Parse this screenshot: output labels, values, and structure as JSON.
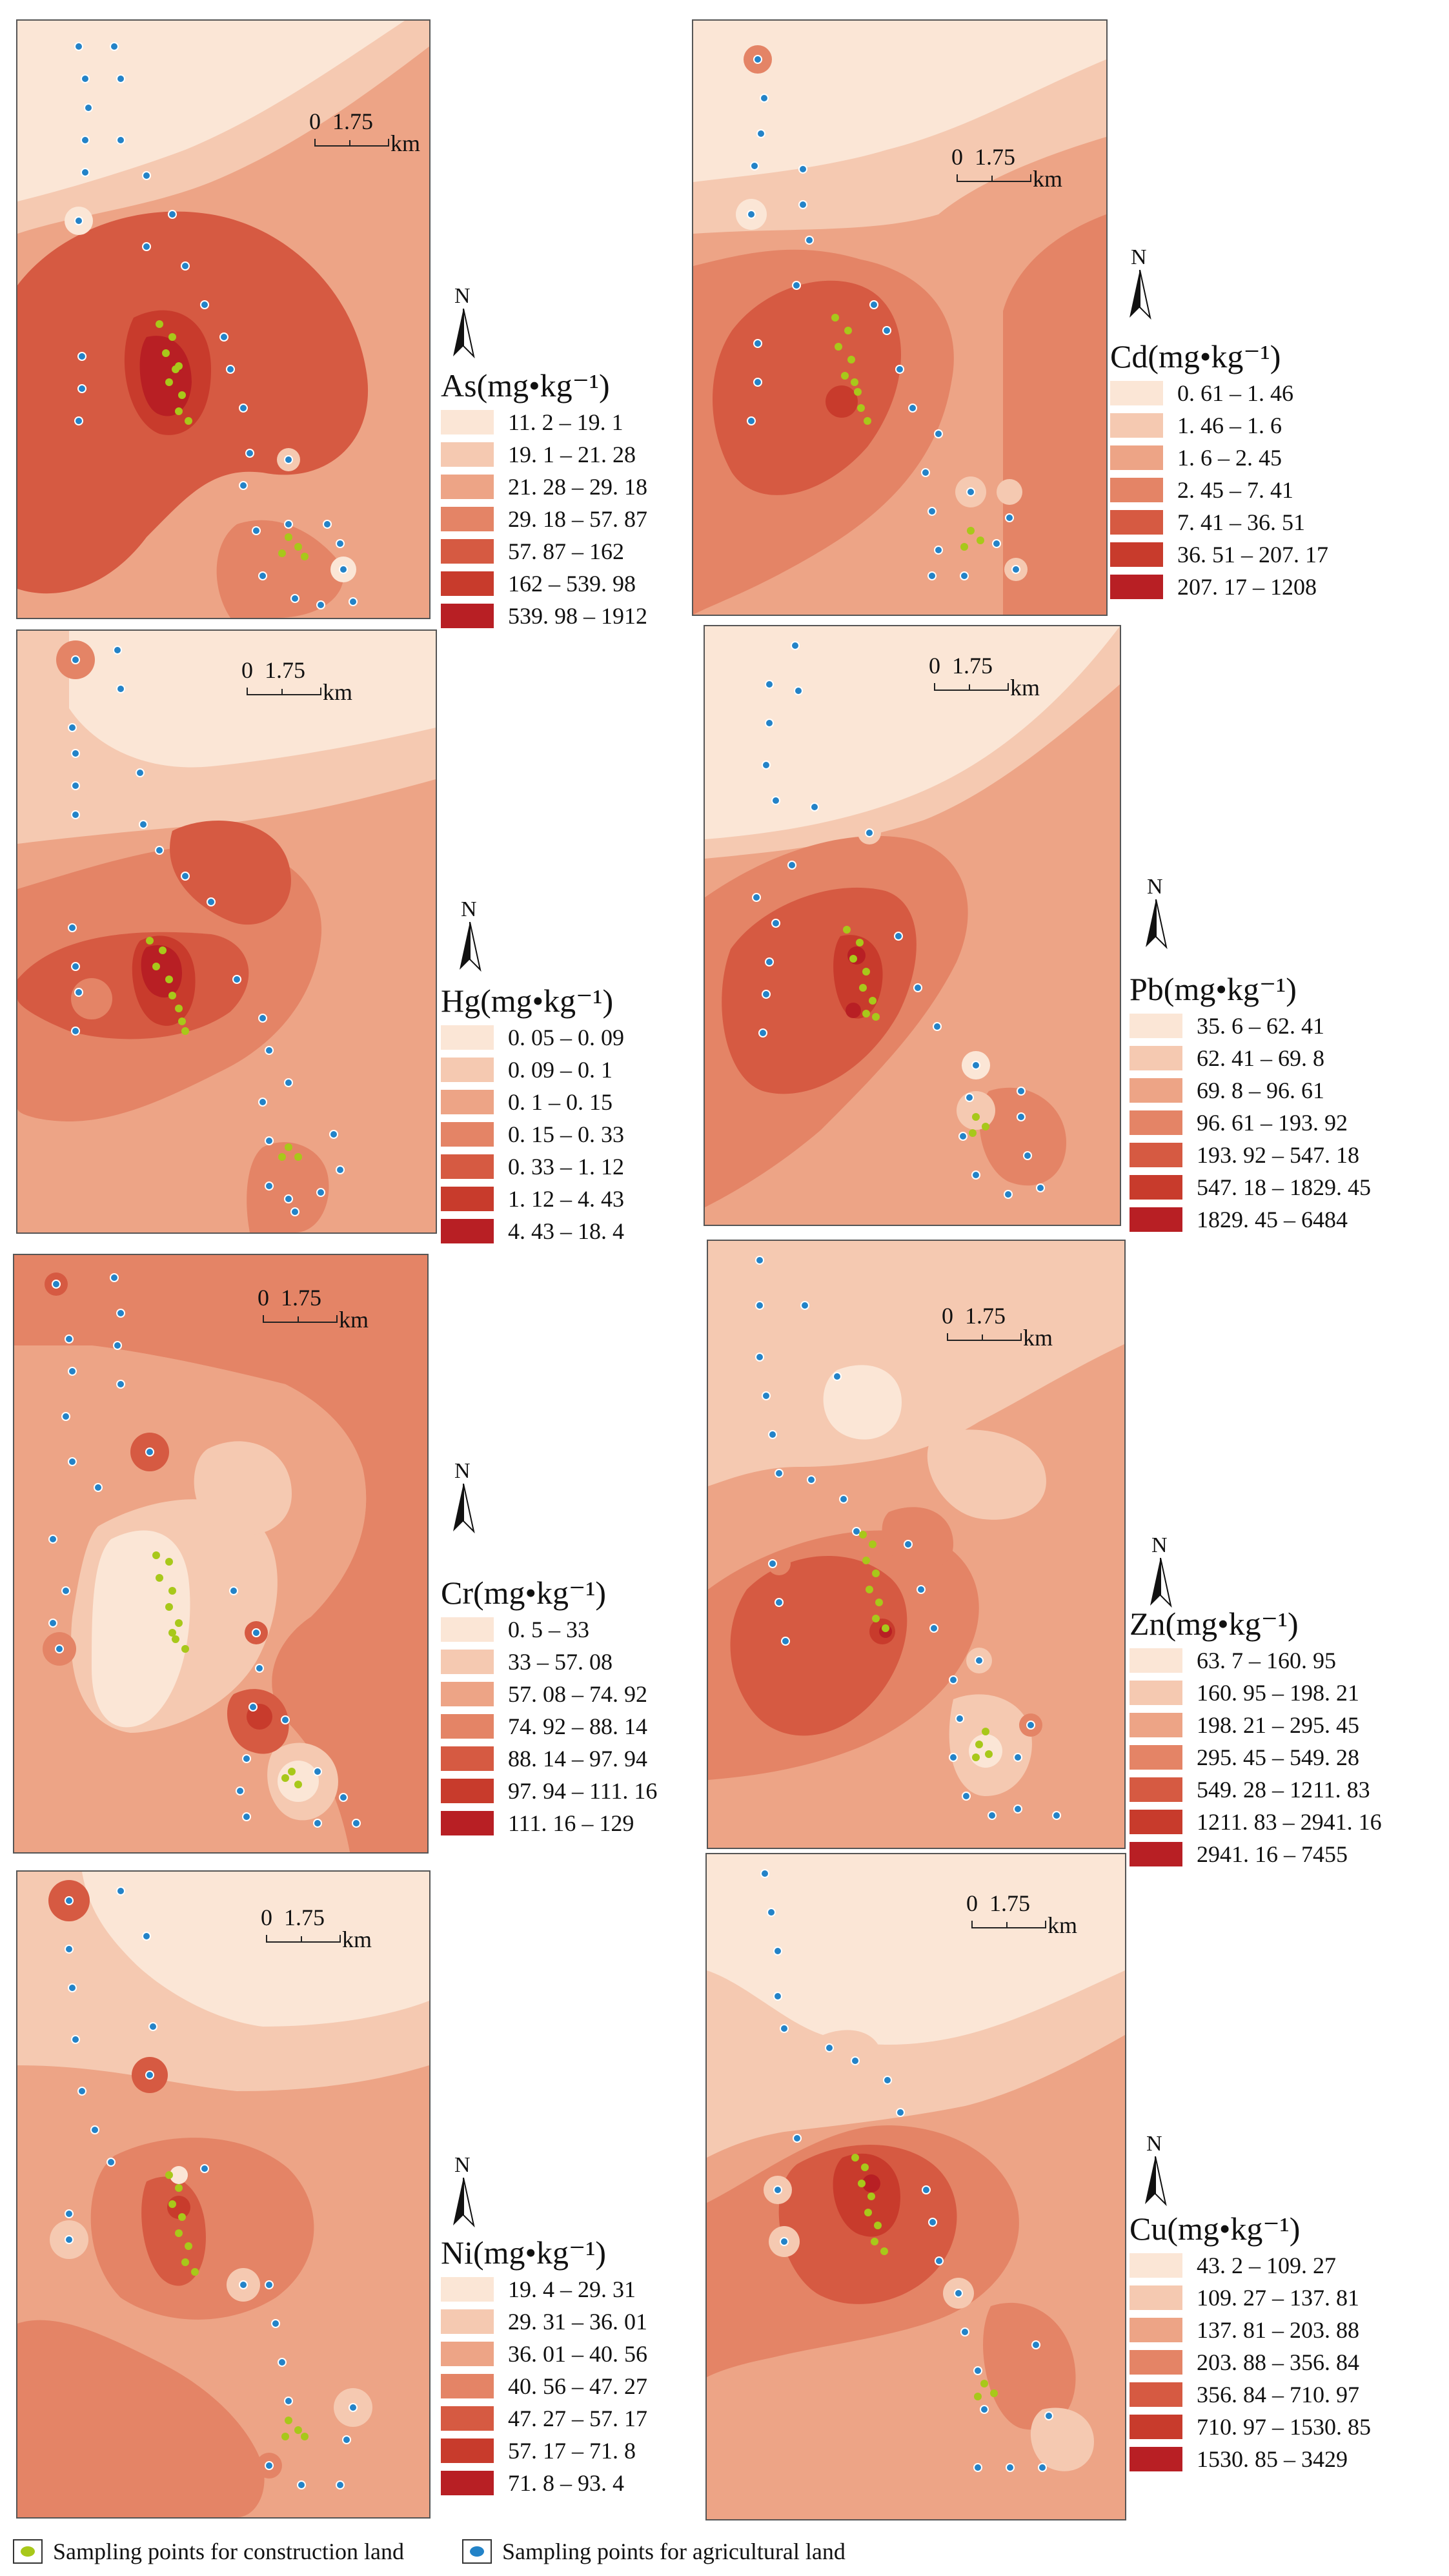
{
  "scale_bar": {
    "zero": "0",
    "distance": "1.75",
    "unit": "km"
  },
  "north_label": "N",
  "colors": {
    "c1": "#fbe6d6",
    "c2": "#f5c9b1",
    "c3": "#eda486",
    "c4": "#e48466",
    "c5": "#d65a42",
    "c6": "#c83b2c",
    "c7": "#b81f24",
    "construction": "#a8c81a",
    "agricultural": "#2383c8"
  },
  "panels": [
    {
      "id": "as",
      "title": "As(mg•kg⁻¹)",
      "ranges": [
        "11. 2 – 19. 1",
        "19. 1 – 21. 28",
        "21. 28 – 29. 18",
        "29. 18 – 57. 87",
        "57. 87 – 162",
        "162 – 539. 98",
        "539. 98 – 1912"
      ]
    },
    {
      "id": "cd",
      "title": "Cd(mg•kg⁻¹)",
      "ranges": [
        "0. 61 – 1. 46",
        "1. 46 – 1. 6",
        "1. 6 – 2. 45",
        "2. 45 – 7. 41",
        "7. 41 – 36. 51",
        "36. 51 – 207. 17",
        "207. 17 – 1208"
      ]
    },
    {
      "id": "hg",
      "title": "Hg(mg•kg⁻¹)",
      "ranges": [
        "0. 05 – 0. 09",
        "0. 09 – 0. 1",
        "0. 1 – 0. 15",
        "0. 15 – 0. 33",
        "0. 33 – 1. 12",
        "1. 12 – 4. 43",
        "4. 43 – 18. 4"
      ]
    },
    {
      "id": "pb",
      "title": "Pb(mg•kg⁻¹)",
      "ranges": [
        "35. 6 – 62. 41",
        "62. 41 – 69. 8",
        "69. 8 – 96. 61",
        "96. 61 – 193. 92",
        "193. 92 – 547. 18",
        "547. 18 – 1829. 45",
        "1829. 45 – 6484"
      ]
    },
    {
      "id": "cr",
      "title": "Cr(mg•kg⁻¹)",
      "ranges": [
        "0. 5 – 33",
        "33 – 57. 08",
        "57. 08 – 74. 92",
        "74. 92 – 88. 14",
        "88. 14 – 97. 94",
        "97. 94 – 111. 16",
        "111. 16 – 129"
      ]
    },
    {
      "id": "zn",
      "title": "Zn(mg•kg⁻¹)",
      "ranges": [
        "63. 7 – 160. 95",
        "160. 95 – 198. 21",
        "198. 21 – 295. 45",
        "295. 45 – 549. 28",
        "549. 28 – 1211. 83",
        "1211. 83 – 2941. 16",
        "2941. 16 – 7455"
      ]
    },
    {
      "id": "ni",
      "title": "Ni(mg•kg⁻¹)",
      "ranges": [
        "19. 4 – 29. 31",
        "29. 31 – 36. 01",
        "36. 01 – 40. 56",
        "40. 56 – 47. 27",
        "47. 27 – 57. 17",
        "57. 17 – 71. 8",
        "71. 8 – 93. 4"
      ]
    },
    {
      "id": "cu",
      "title": "Cu(mg•kg⁻¹)",
      "ranges": [
        "43. 2 – 109. 27",
        "109. 27 – 137. 81",
        "137. 81 – 203. 88",
        "203. 88 – 356. 84",
        "356. 84 – 710. 97",
        "710. 97 – 1530. 85",
        "1530. 85 – 3429"
      ]
    }
  ],
  "bottom_legend": {
    "construction_label": "Sampling points for construction land",
    "agricultural_label": "Sampling points for agricultural land"
  }
}
